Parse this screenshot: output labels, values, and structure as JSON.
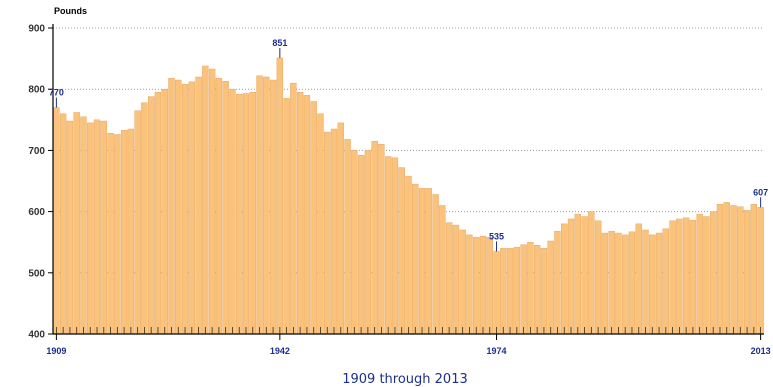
{
  "chart_data": {
    "type": "bar",
    "xlabel": "1909 through 2013",
    "ylabel": "Pounds",
    "ylim": [
      400,
      900
    ],
    "yticks": [
      "400",
      "500",
      "600",
      "700",
      "800",
      "900"
    ],
    "xticks": [
      "1909",
      "1942",
      "1974",
      "2013"
    ],
    "grid": "dotted horizontal",
    "colors": {
      "bar": "#fbc27c",
      "bar_edge": "#e0a25a",
      "annotation": "#1c2f8c",
      "grid": "#9a9a9a"
    },
    "annotations": [
      {
        "year": 1909,
        "value": 770,
        "label": "770"
      },
      {
        "year": 1942,
        "value": 851,
        "label": "851"
      },
      {
        "year": 1974,
        "value": 535,
        "label": "535"
      },
      {
        "year": 2013,
        "value": 607,
        "label": "607"
      }
    ],
    "categories": [
      1909,
      1910,
      1911,
      1912,
      1913,
      1914,
      1915,
      1916,
      1917,
      1918,
      1919,
      1920,
      1921,
      1922,
      1923,
      1924,
      1925,
      1926,
      1927,
      1928,
      1929,
      1930,
      1931,
      1932,
      1933,
      1934,
      1935,
      1936,
      1937,
      1938,
      1939,
      1940,
      1941,
      1942,
      1943,
      1944,
      1945,
      1946,
      1947,
      1948,
      1949,
      1950,
      1951,
      1952,
      1953,
      1954,
      1955,
      1956,
      1957,
      1958,
      1959,
      1960,
      1961,
      1962,
      1963,
      1964,
      1965,
      1966,
      1967,
      1968,
      1969,
      1970,
      1971,
      1972,
      1973,
      1974,
      1975,
      1976,
      1977,
      1978,
      1979,
      1980,
      1981,
      1982,
      1983,
      1984,
      1985,
      1986,
      1987,
      1988,
      1989,
      1990,
      1991,
      1992,
      1993,
      1994,
      1995,
      1996,
      1997,
      1998,
      1999,
      2000,
      2001,
      2002,
      2003,
      2004,
      2005,
      2006,
      2007,
      2008,
      2009,
      2010,
      2011,
      2012,
      2013
    ],
    "values": [
      770,
      760,
      748,
      762,
      755,
      745,
      750,
      748,
      728,
      726,
      733,
      735,
      765,
      778,
      788,
      795,
      800,
      818,
      815,
      808,
      812,
      820,
      838,
      833,
      818,
      813,
      800,
      792,
      793,
      795,
      822,
      820,
      815,
      851,
      785,
      810,
      795,
      790,
      780,
      760,
      730,
      735,
      745,
      718,
      700,
      692,
      700,
      715,
      710,
      690,
      688,
      672,
      658,
      645,
      638,
      638,
      628,
      610,
      582,
      578,
      570,
      562,
      558,
      560,
      558,
      535,
      540,
      540,
      542,
      546,
      550,
      545,
      540,
      552,
      568,
      580,
      588,
      596,
      592,
      600,
      585,
      565,
      568,
      565,
      562,
      567,
      580,
      570,
      562,
      565,
      572,
      585,
      588,
      590,
      586,
      596,
      592,
      600,
      612,
      615,
      610,
      608,
      602,
      612,
      607
    ]
  }
}
